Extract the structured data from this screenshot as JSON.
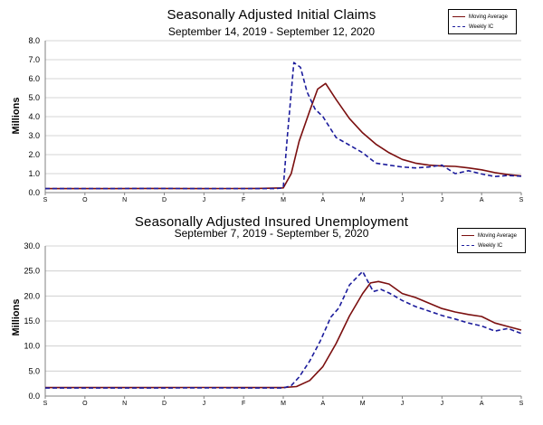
{
  "chart_data": [
    {
      "type": "line",
      "title": "Seasonally Adjusted Initial Claims",
      "subtitle": "September 14, 2019 - September 12, 2020",
      "ylabel": "Millions",
      "ylim": [
        0,
        8
      ],
      "yticks": [
        "0.0",
        "1.0",
        "2.0",
        "3.0",
        "4.0",
        "5.0",
        "6.0",
        "7.0",
        "8.0"
      ],
      "xticks": [
        "S",
        "O",
        "N",
        "D",
        "J",
        "F",
        "M",
        "A",
        "M",
        "J",
        "J",
        "A",
        "S"
      ],
      "grid": "horizontal",
      "legend_position": "top-right",
      "series": [
        {
          "name": "Moving Average",
          "color": "#7b0f0f",
          "style": "solid",
          "x": [
            0,
            2,
            4,
            6,
            8,
            9,
            9.3,
            9.6,
            10,
            10.3,
            10.6,
            11,
            11.5,
            12,
            12.5,
            13,
            13.5,
            14,
            14.5,
            15,
            15.5,
            16,
            16.5,
            17,
            17.5,
            18
          ],
          "values": [
            0.21,
            0.21,
            0.22,
            0.21,
            0.22,
            0.25,
            1.0,
            2.7,
            4.3,
            5.45,
            5.75,
            4.9,
            3.9,
            3.15,
            2.55,
            2.1,
            1.75,
            1.55,
            1.45,
            1.4,
            1.38,
            1.3,
            1.2,
            1.05,
            0.95,
            0.88
          ]
        },
        {
          "name": "Weekly IC",
          "color": "#1c1c9c",
          "style": "dashed",
          "x": [
            0,
            2,
            4,
            6,
            8,
            8.7,
            9,
            9.15,
            9.4,
            9.65,
            9.9,
            10.2,
            10.5,
            11,
            11.5,
            12,
            12.5,
            13,
            13.5,
            14,
            14.5,
            15,
            15.5,
            16,
            16.5,
            17,
            17.5,
            18
          ],
          "values": [
            0.21,
            0.21,
            0.22,
            0.21,
            0.21,
            0.21,
            0.25,
            2.9,
            6.85,
            6.6,
            5.3,
            4.4,
            4.0,
            2.9,
            2.5,
            2.1,
            1.55,
            1.45,
            1.35,
            1.3,
            1.35,
            1.45,
            1.0,
            1.15,
            0.98,
            0.85,
            0.9,
            0.86
          ]
        }
      ]
    },
    {
      "type": "line",
      "title": "Seasonally Adjusted Insured Unemployment",
      "subtitle": "September 7, 2019 - September 5, 2020",
      "ylabel": "Millions",
      "ylim": [
        0,
        30
      ],
      "yticks": [
        "0.0",
        "5.0",
        "10.0",
        "15.0",
        "20.0",
        "25.0",
        "30.0"
      ],
      "xticks": [
        "S",
        "O",
        "N",
        "D",
        "J",
        "F",
        "M",
        "A",
        "M",
        "J",
        "J",
        "A",
        "S"
      ],
      "grid": "horizontal",
      "legend_position": "top-right",
      "series": [
        {
          "name": "Moving Average",
          "color": "#7b0f0f",
          "style": "solid",
          "x": [
            0,
            2,
            4,
            6,
            8,
            9,
            9.5,
            10,
            10.5,
            11,
            11.5,
            12,
            12.3,
            12.6,
            13,
            13.5,
            14,
            14.5,
            15,
            15.5,
            16,
            16.5,
            17,
            17.5,
            18
          ],
          "values": [
            1.7,
            1.7,
            1.7,
            1.72,
            1.7,
            1.7,
            1.9,
            3.1,
            5.9,
            10.5,
            16.0,
            20.5,
            22.6,
            22.9,
            22.4,
            20.5,
            19.7,
            18.6,
            17.5,
            16.8,
            16.3,
            15.9,
            14.6,
            13.9,
            13.2
          ]
        },
        {
          "name": "Weekly IC",
          "color": "#1c1c9c",
          "style": "dashed",
          "x": [
            0,
            2,
            4,
            6,
            8,
            9,
            9.3,
            9.6,
            10,
            10.4,
            10.8,
            11.1,
            11.5,
            12,
            12.4,
            12.7,
            13,
            13.5,
            14,
            14.5,
            15,
            15.5,
            16,
            16.5,
            17,
            17.5,
            18
          ],
          "values": [
            1.6,
            1.6,
            1.6,
            1.65,
            1.6,
            1.6,
            2.1,
            3.8,
            7.0,
            11.0,
            15.8,
            17.6,
            22.2,
            24.9,
            20.9,
            21.3,
            20.6,
            19.1,
            17.9,
            17.0,
            16.1,
            15.4,
            14.6,
            14.0,
            13.0,
            13.5,
            12.5
          ]
        }
      ]
    }
  ]
}
